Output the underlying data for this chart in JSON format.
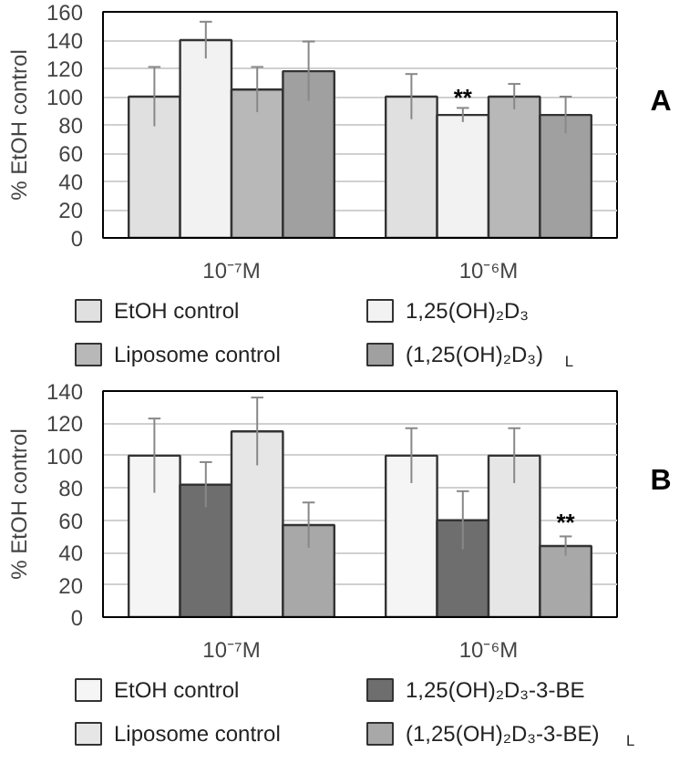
{
  "chart_data": [
    {
      "type": "bar",
      "ylabel": "% EtOH control",
      "categories": [
        "10⁻⁷M",
        "10⁻⁶M"
      ],
      "ylim": [
        0,
        160
      ],
      "yticks": [
        0,
        20,
        40,
        60,
        80,
        100,
        120,
        140,
        160
      ],
      "grid": "y",
      "legend": "bottom",
      "series": [
        {
          "name": "EtOH control",
          "color": "#e0e0e0",
          "values": [
            100,
            100
          ],
          "errors": [
            21,
            16
          ]
        },
        {
          "name": "1,25(OH)₂D₃",
          "color": "#f2f2f2",
          "values": [
            140,
            87
          ],
          "errors": [
            13,
            5
          ]
        },
        {
          "name": "Liposome control",
          "color": "#b8b8b8",
          "values": [
            105,
            100
          ],
          "errors": [
            16,
            9
          ]
        },
        {
          "name": "(1,25(OH)₂D₃)$_{L}$",
          "color": "#a0a0a0",
          "values": [
            118,
            87
          ],
          "errors": [
            21,
            13
          ]
        }
      ],
      "annotations": [
        {
          "text": "**",
          "x": "10⁻⁶M",
          "y": 90
        },
        "A"
      ]
    },
    {
      "type": "bar",
      "ylabel": "% EtOH control",
      "categories": [
        "10⁻⁷M",
        "10⁻⁶M"
      ],
      "ylim": [
        0,
        140
      ],
      "yticks": [
        0,
        20,
        40,
        60,
        80,
        100,
        120,
        140
      ],
      "grid": "y",
      "legend": "bottom",
      "series": [
        {
          "name": "EtOH control",
          "color": "#f5f5f5",
          "values": [
            100,
            100
          ],
          "errors": [
            23,
            17
          ]
        },
        {
          "name": "1,25(OH)₂D₃-3-BE",
          "color": "#6e6e6e",
          "values": [
            82,
            60
          ],
          "errors": [
            14,
            18
          ]
        },
        {
          "name": "Liposome control",
          "color": "#e6e6e6",
          "values": [
            115,
            100
          ],
          "errors": [
            21,
            17
          ]
        },
        {
          "name": "(1,25(OH)₂D₃-3-BE)$_{L}$",
          "color": "#a8a8a8",
          "values": [
            57,
            44
          ],
          "errors": [
            14,
            6
          ]
        }
      ],
      "annotations": [
        {
          "text": "**",
          "x": "10⁻⁶M",
          "y": 50
        },
        "B"
      ]
    }
  ]
}
